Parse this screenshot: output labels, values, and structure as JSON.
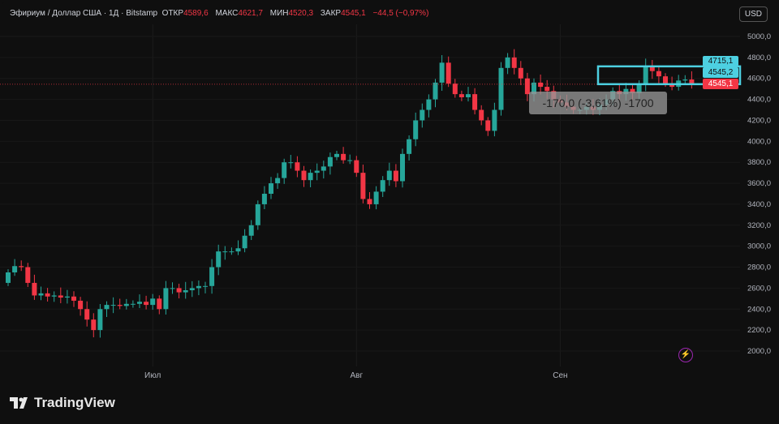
{
  "header": {
    "symbol": "Эфириум / Доллар США · 1Д · Bitstamp",
    "open_label": "ОТКР",
    "open": "4589,6",
    "high_label": "МАКС",
    "high": "4621,7",
    "low_label": "МИН",
    "low": "4520,3",
    "close_label": "ЗАКР",
    "close": "4545,1",
    "change": "−44,5 (−0,97%)"
  },
  "currency_button": "USD",
  "brand": "TradingView",
  "measure_tooltip": "-170,0 (-3,61%) -1700",
  "price_labels": {
    "box_top": "4715,1",
    "box_bottom": "4545,2",
    "last": "4545,1"
  },
  "colors": {
    "up": "#26a69a",
    "down": "#f23645",
    "box": "#4dd0e1",
    "background": "#0f0f0f"
  },
  "chart_data": {
    "type": "candlestick",
    "title": "",
    "xlabel": "",
    "ylabel": "",
    "ylim": [
      2000,
      5000
    ],
    "y_ticks": [
      "5000,0",
      "4800,0",
      "4600,0",
      "4400,0",
      "4200,0",
      "4000,0",
      "3800,0",
      "3600,0",
      "3400,0",
      "3200,0",
      "3000,0",
      "2800,0",
      "2600,0",
      "2400,0",
      "2200,0",
      "2000,0"
    ],
    "x_ticks": [
      {
        "label": "Июл",
        "index": 22
      },
      {
        "label": "Авг",
        "index": 53
      },
      {
        "label": "Сен",
        "index": 84
      }
    ],
    "first_open": 2650,
    "closes": [
      2750,
      2810,
      2800,
      2650,
      2530,
      2550,
      2520,
      2530,
      2510,
      2520,
      2480,
      2400,
      2300,
      2200,
      2400,
      2440,
      2440,
      2430,
      2450,
      2450,
      2470,
      2440,
      2500,
      2400,
      2600,
      2600,
      2560,
      2580,
      2600,
      2620,
      2620,
      2800,
      2950,
      2950,
      2950,
      2980,
      3100,
      3200,
      3400,
      3500,
      3600,
      3650,
      3800,
      3800,
      3720,
      3630,
      3700,
      3720,
      3760,
      3850,
      3880,
      3820,
      3820,
      3700,
      3450,
      3400,
      3520,
      3630,
      3720,
      3620,
      3880,
      4020,
      4200,
      4300,
      4400,
      4560,
      4750,
      4550,
      4450,
      4420,
      4450,
      4300,
      4200,
      4100,
      4300,
      4700,
      4800,
      4700,
      4600,
      4450,
      4560,
      4520,
      4480,
      4400,
      4370,
      4330,
      4300,
      4300,
      4330,
      4300,
      4350,
      4400,
      4480,
      4450,
      4500,
      4460,
      4550,
      4720,
      4670,
      4620,
      4550,
      4520,
      4580,
      4590,
      4545
    ],
    "last_price_line": 4545.1,
    "rectangle": {
      "top": 4715.1,
      "bottom": 4545.2
    }
  }
}
